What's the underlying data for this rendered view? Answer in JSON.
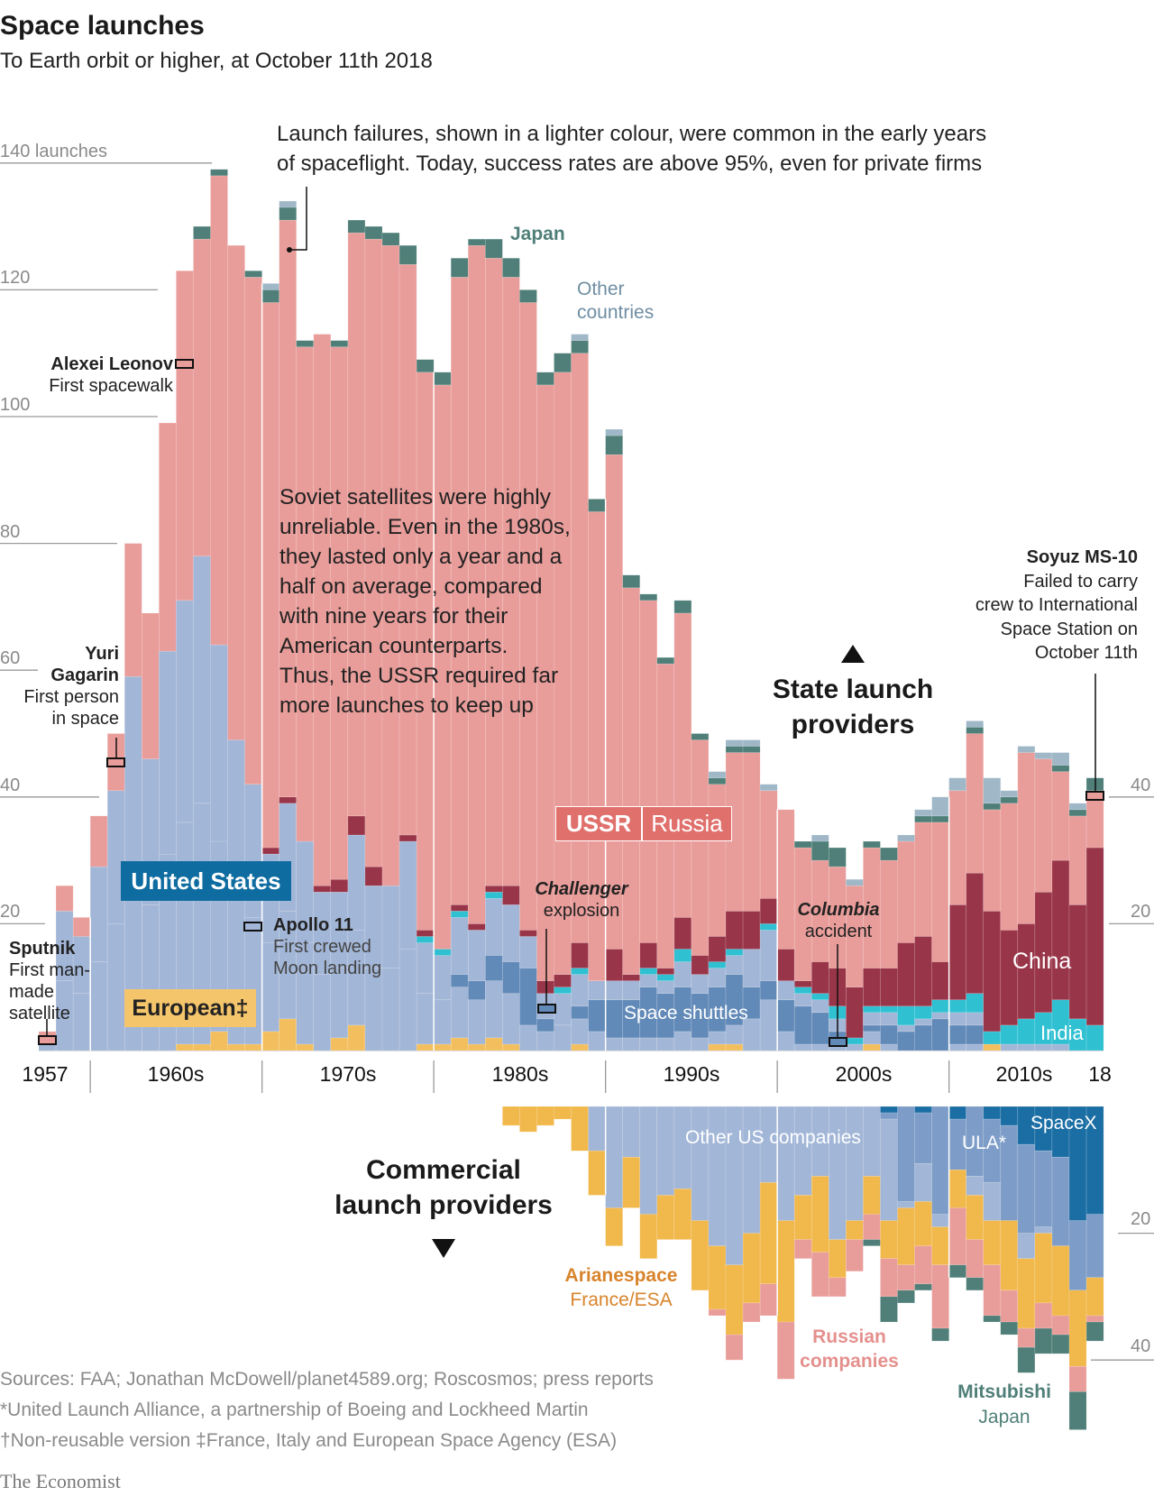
{
  "header": {
    "title": "Space launches",
    "subtitle": "To Earth orbit or higher, at October 11th 2018"
  },
  "chart_data": [
    {
      "type": "bar",
      "stacked": true,
      "title": "State launch providers",
      "ylabel": "launches",
      "ylim": [
        0,
        140
      ],
      "yticks": [
        "140 launches",
        "120",
        "100",
        "80",
        "60",
        "40",
        "20"
      ],
      "right_yticks": [
        "40",
        "20"
      ],
      "grid": true,
      "x_tick_labels": [
        "1957",
        "1960s",
        "1970s",
        "1980s",
        "1990s",
        "2000s",
        "2010s",
        "18"
      ],
      "years": [
        1957,
        1958,
        1959,
        1960,
        1961,
        1962,
        1963,
        1964,
        1965,
        1966,
        1967,
        1968,
        1969,
        1970,
        1971,
        1972,
        1973,
        1974,
        1975,
        1976,
        1977,
        1978,
        1979,
        1980,
        1981,
        1982,
        1983,
        1984,
        1985,
        1986,
        1987,
        1988,
        1989,
        1990,
        1991,
        1992,
        1993,
        1994,
        1995,
        1996,
        1997,
        1998,
        1999,
        2000,
        2001,
        2002,
        2003,
        2004,
        2005,
        2006,
        2007,
        2008,
        2009,
        2010,
        2011,
        2012,
        2013,
        2014,
        2015,
        2016,
        2017,
        2018
      ],
      "series": [
        {
          "name": "European‡",
          "color": "#f3bf5e",
          "values": [
            0,
            0,
            0,
            0,
            0,
            0,
            0,
            0,
            1,
            1,
            3,
            1,
            1,
            3,
            5,
            1,
            0,
            2,
            4,
            0,
            0,
            0,
            1,
            1,
            2,
            1,
            2,
            1,
            0,
            0,
            0,
            1,
            0,
            0,
            0,
            0,
            0,
            0,
            0,
            1,
            1,
            0,
            0,
            0,
            0,
            0,
            0,
            0,
            1,
            0,
            0,
            0,
            0,
            0,
            0,
            1,
            0,
            0,
            0,
            0,
            0,
            0
          ]
        },
        {
          "name": "United States",
          "color": "#a2b6d7",
          "values": [
            1,
            22,
            18,
            29,
            41,
            59,
            46,
            63,
            70,
            77,
            61,
            48,
            41,
            28,
            34,
            32,
            25,
            23,
            30,
            26,
            26,
            33,
            16,
            14,
            19,
            18,
            22,
            22,
            18,
            9,
            9,
            11,
            11,
            11,
            11,
            12,
            11,
            14,
            12,
            12,
            14,
            16,
            19,
            11,
            9,
            8,
            5,
            1,
            5,
            6,
            4,
            5,
            6,
            6,
            6,
            0,
            1,
            1,
            1,
            1,
            0,
            0
          ]
        },
        {
          "name": "Space shuttles",
          "color": "#628ab8",
          "part_of": "United States",
          "values": [
            0,
            0,
            0,
            0,
            0,
            0,
            0,
            0,
            0,
            0,
            0,
            0,
            0,
            0,
            0,
            0,
            0,
            0,
            0,
            0,
            0,
            0,
            0,
            0,
            2,
            3,
            4,
            5,
            9,
            2,
            0,
            2,
            5,
            6,
            6,
            8,
            7,
            7,
            7,
            7,
            8,
            5,
            3,
            5,
            6,
            5,
            1,
            0,
            1,
            3,
            3,
            4,
            5,
            3,
            3,
            0,
            0,
            0,
            0,
            0,
            0,
            0
          ]
        },
        {
          "name": "India",
          "color": "#2fc0d2",
          "values": [
            0,
            0,
            0,
            0,
            0,
            0,
            0,
            0,
            0,
            0,
            0,
            0,
            0,
            0,
            0,
            0,
            0,
            0,
            0,
            0,
            0,
            0,
            1,
            1,
            1,
            0,
            1,
            0,
            0,
            0,
            1,
            1,
            0,
            0,
            0,
            1,
            1,
            2,
            0,
            1,
            1,
            0,
            1,
            0,
            1,
            1,
            2,
            1,
            1,
            1,
            3,
            2,
            2,
            2,
            3,
            2,
            3,
            4,
            5,
            7,
            5,
            4
          ]
        },
        {
          "name": "China",
          "color": "#993549",
          "values": [
            0,
            0,
            0,
            0,
            0,
            0,
            0,
            0,
            0,
            0,
            0,
            0,
            0,
            1,
            1,
            0,
            1,
            2,
            3,
            3,
            0,
            1,
            1,
            0,
            1,
            1,
            1,
            3,
            1,
            2,
            2,
            4,
            0,
            5,
            1,
            4,
            1,
            5,
            3,
            4,
            6,
            6,
            4,
            5,
            1,
            5,
            6,
            8,
            6,
            6,
            10,
            11,
            6,
            15,
            19,
            19,
            15,
            15,
            19,
            22,
            18,
            28
          ]
        },
        {
          "name": "USSR / Russia",
          "color": "#e99d9a",
          "values": [
            2,
            4,
            3,
            8,
            9,
            21,
            23,
            36,
            52,
            50,
            74,
            78,
            80,
            86,
            91,
            78,
            87,
            84,
            92,
            99,
            101,
            90,
            88,
            89,
            99,
            107,
            99,
            96,
            99,
            94,
            95,
            93,
            74,
            78,
            61,
            54,
            48,
            48,
            34,
            24,
            25,
            25,
            17,
            22,
            21,
            16,
            16,
            16,
            19,
            17,
            16,
            18,
            22,
            18,
            22,
            16,
            20,
            27,
            21,
            14,
            14,
            9
          ]
        },
        {
          "name": "Japan",
          "color": "#4f7f78",
          "values": [
            0,
            0,
            0,
            0,
            0,
            0,
            0,
            0,
            0,
            2,
            1,
            0,
            1,
            2,
            2,
            1,
            0,
            1,
            2,
            2,
            2,
            3,
            2,
            2,
            3,
            1,
            3,
            3,
            2,
            2,
            3,
            2,
            2,
            3,
            2,
            1,
            1,
            2,
            1,
            1,
            1,
            1,
            0,
            0,
            1,
            3,
            3,
            0,
            1,
            2,
            0,
            1,
            1,
            0,
            1,
            1,
            1,
            0,
            0,
            1,
            1,
            2
          ]
        },
        {
          "name": "Other countries",
          "color": "#9fb7c7",
          "values": [
            0,
            0,
            0,
            0,
            0,
            0,
            0,
            0,
            0,
            0,
            0,
            0,
            0,
            1,
            1,
            0,
            0,
            0,
            0,
            0,
            0,
            0,
            0,
            0,
            0,
            0,
            0,
            0,
            0,
            0,
            0,
            1,
            0,
            1,
            0,
            0,
            0,
            0,
            0,
            1,
            1,
            1,
            1,
            0,
            0,
            1,
            0,
            1,
            0,
            0,
            1,
            1,
            3,
            2,
            1,
            4,
            1,
            1,
            1,
            2,
            1,
            0
          ]
        }
      ]
    },
    {
      "type": "bar",
      "stacked": true,
      "direction": "downward",
      "title": "Commercial launch providers",
      "ylim": [
        0,
        52
      ],
      "right_yticks": [
        "20",
        "40"
      ],
      "years": [
        1984,
        1985,
        1986,
        1987,
        1988,
        1989,
        1990,
        1991,
        1992,
        1993,
        1994,
        1995,
        1996,
        1997,
        1998,
        1999,
        2000,
        2001,
        2002,
        2003,
        2004,
        2005,
        2006,
        2007,
        2008,
        2009,
        2010,
        2011,
        2012,
        2013,
        2014,
        2015,
        2016,
        2017,
        2018
      ],
      "series": [
        {
          "name": "SpaceX",
          "color": "#1b6ea4",
          "values": [
            0,
            0,
            0,
            0,
            0,
            0,
            0,
            0,
            0,
            0,
            0,
            0,
            0,
            0,
            0,
            0,
            0,
            0,
            0,
            0,
            0,
            0,
            1,
            0,
            1,
            0,
            2,
            0,
            2,
            3,
            6,
            7,
            8,
            18,
            17
          ]
        },
        {
          "name": "ULA*",
          "color": "#7d9dc8",
          "values": [
            0,
            0,
            0,
            0,
            0,
            0,
            0,
            0,
            0,
            0,
            0,
            0,
            0,
            0,
            0,
            0,
            0,
            0,
            0,
            0,
            0,
            0,
            1,
            15,
            8,
            17,
            8,
            11,
            10,
            15,
            14,
            12,
            14,
            11,
            10
          ]
        },
        {
          "name": "Other US companies",
          "color": "#a2b6d7",
          "values": [
            0,
            0,
            0,
            0,
            0,
            7,
            16,
            8,
            17,
            14,
            13,
            18,
            22,
            25,
            20,
            12,
            18,
            14,
            11,
            21,
            18,
            11,
            16,
            1,
            6,
            2,
            0,
            3,
            6,
            0,
            4,
            1,
            0,
            0,
            0
          ]
        },
        {
          "name": "Arianespace",
          "color": "#f1b84b",
          "values": [
            3,
            4,
            3,
            2,
            7,
            7,
            6,
            8,
            7,
            7,
            8,
            11,
            10,
            11,
            11,
            16,
            16,
            7,
            12,
            6,
            3,
            6,
            6,
            9,
            7,
            6,
            6,
            7,
            7,
            11,
            11,
            11,
            11,
            12,
            6
          ]
        },
        {
          "name": "Russian companies",
          "color": "#e99d9a",
          "values": [
            0,
            0,
            0,
            0,
            0,
            0,
            0,
            0,
            0,
            0,
            0,
            0,
            1,
            4,
            3,
            5,
            9,
            3,
            7,
            3,
            5,
            4,
            6,
            4,
            6,
            10,
            9,
            6,
            8,
            5,
            3,
            4,
            3,
            4,
            1
          ]
        },
        {
          "name": "Mitsubishi",
          "color": "#4f7f78",
          "values": [
            0,
            0,
            0,
            0,
            0,
            0,
            0,
            0,
            0,
            0,
            0,
            0,
            0,
            0,
            0,
            0,
            0,
            0,
            0,
            0,
            0,
            1,
            4,
            2,
            1,
            2,
            2,
            2,
            1,
            2,
            4,
            4,
            3,
            6,
            3
          ]
        }
      ]
    }
  ],
  "labels": {
    "grid": [
      "140 launches",
      "120",
      "100",
      "80",
      "60",
      "40",
      "20"
    ],
    "right_state": [
      "40",
      "20"
    ],
    "right_commercial": [
      "20",
      "40"
    ],
    "x_axis": [
      "1957",
      "1960s",
      "1970s",
      "1980s",
      "1990s",
      "2000s",
      "2010s",
      "18"
    ],
    "failures_note": [
      "Launch failures, shown in a lighter colour, were common in the early years",
      "of spaceflight. Today, success rates are above 95%, even for private firms"
    ],
    "soviet_note": [
      "Soviet satellites were highly",
      "unreliable. Even in the 1980s,",
      "they lasted only a year and a",
      "half on average, compared",
      "with nine years for their",
      "American counterparts.",
      "Thus, the USSR required far",
      "more launches to keep up"
    ],
    "japan": "Japan",
    "other_countries": [
      "Other",
      "countries"
    ],
    "leonov": {
      "name": "Alexei Leonov",
      "desc": "First spacewalk"
    },
    "gagarin": {
      "name1": "Yuri",
      "name2": "Gagarin",
      "desc1": "First person",
      "desc2": "in space"
    },
    "sputnik": {
      "name": "Sputnik",
      "desc1": "First man-",
      "desc2": "made",
      "desc3": "satellite"
    },
    "apollo": {
      "name": "Apollo 11",
      "desc1": "First crewed",
      "desc2": "Moon landing"
    },
    "challenger": [
      "Challenger",
      "explosion"
    ],
    "columbia": [
      "Columbia",
      "accident"
    ],
    "soyuz": {
      "name": "Soyuz MS-10",
      "desc": [
        "Failed to carry",
        "crew to International",
        "Space Station on",
        "October 11th"
      ]
    },
    "united_states": "United States",
    "european": "European‡",
    "ussr": "USSR",
    "russia": "Russia",
    "space_shuttles": "Space shuttles",
    "china": "China",
    "india": "India",
    "state_providers": [
      "State launch",
      "providers"
    ],
    "commercial_providers": [
      "Commercial",
      "launch providers"
    ],
    "other_us": "Other US companies",
    "ula": "ULA*",
    "spacex": "SpaceX",
    "arianespace": [
      "Arianespace",
      "France/ESA"
    ],
    "russian_companies": [
      "Russian",
      "companies"
    ],
    "mitsubishi": [
      "Mitsubishi",
      "Japan"
    ]
  },
  "footer": {
    "sources": "Sources: FAA; Jonathan McDowell/planet4589.org; Roscosmos; press reports",
    "note_ula": "*United Launch Alliance, a partnership of Boeing  and Lockheed Martin",
    "note_daggers": "†Non-reusable version   ‡France, Italy and European Space Agency (ESA)",
    "logo": "The Economist"
  },
  "colors": {
    "us_label_bg": "#0f6ca1",
    "european_label_bg": "#f5c56c",
    "ussr_label_bg": "#e0706c",
    "arianespace_text": "#d8842c",
    "russian_text": "#e4908d",
    "mitsubishi_text": "#4f7f78",
    "other_countries_text": "#6f8ea3",
    "japan_text": "#4f7f78"
  }
}
